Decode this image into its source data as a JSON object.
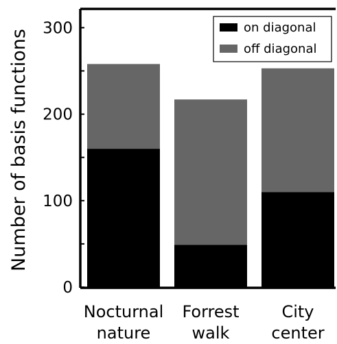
{
  "chart_data": {
    "type": "bar",
    "stacked": true,
    "categories": [
      "Nocturnal\nnature",
      "Forrest\nwalk",
      "City\ncenter"
    ],
    "series": [
      {
        "name": "on diagonal",
        "color": "#000000",
        "values": [
          160,
          49,
          110
        ]
      },
      {
        "name": "off diagonal",
        "color": "#666666",
        "values": [
          98,
          168,
          143
        ]
      }
    ],
    "ylabel": "Number of basis functions",
    "xlabel": "",
    "ylim": [
      0,
      325
    ],
    "yticks": [
      0,
      100,
      200,
      300
    ],
    "grid": false,
    "legend_position": "top-right"
  }
}
